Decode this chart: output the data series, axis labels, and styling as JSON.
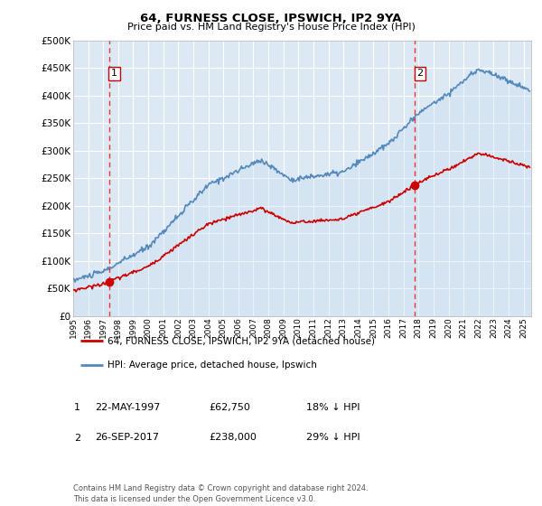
{
  "title": "64, FURNESS CLOSE, IPSWICH, IP2 9YA",
  "subtitle": "Price paid vs. HM Land Registry's House Price Index (HPI)",
  "plot_bg_color": "#dce9f5",
  "ylim": [
    0,
    500000
  ],
  "yticks": [
    0,
    50000,
    100000,
    150000,
    200000,
    250000,
    300000,
    350000,
    400000,
    450000,
    500000
  ],
  "ytick_labels": [
    "£0",
    "£50K",
    "£100K",
    "£150K",
    "£200K",
    "£250K",
    "£300K",
    "£350K",
    "£400K",
    "£450K",
    "£500K"
  ],
  "xlim_start": 1995.0,
  "xlim_end": 2025.5,
  "marker1_x": 1997.388,
  "marker1_y": 62750,
  "marker2_x": 2017.735,
  "marker2_y": 238000,
  "marker1_label": "1",
  "marker2_label": "2",
  "marker1_date": "22-MAY-1997",
  "marker1_price": "£62,750",
  "marker1_hpi": "18% ↓ HPI",
  "marker2_date": "26-SEP-2017",
  "marker2_price": "£238,000",
  "marker2_hpi": "29% ↓ HPI",
  "legend_line1": "64, FURNESS CLOSE, IPSWICH, IP2 9YA (detached house)",
  "legend_line2": "HPI: Average price, detached house, Ipswich",
  "footnote": "Contains HM Land Registry data © Crown copyright and database right 2024.\nThis data is licensed under the Open Government Licence v3.0.",
  "line_color_red": "#cc0000",
  "line_color_blue": "#5588bb",
  "fill_color_blue": "#c8dcf0",
  "dashed_line_color": "#ee3333",
  "grid_color": "#ffffff",
  "marker_box_color": "#cc0000"
}
